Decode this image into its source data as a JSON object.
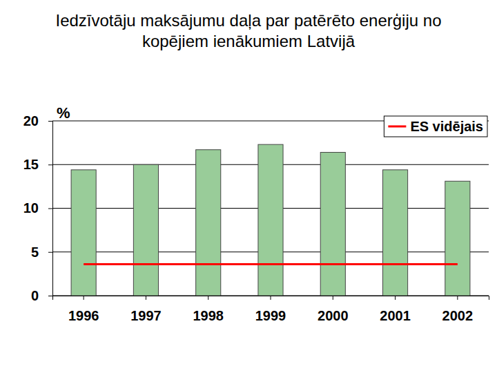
{
  "chart_data": {
    "type": "bar",
    "title": "Iedzīvotāju maksājumu daļa par patērēto enerģiju no kopējiem ienākumiem Latvijā",
    "y_label": "%",
    "categories": [
      "1996",
      "1997",
      "1998",
      "1999",
      "2000",
      "2001",
      "2002"
    ],
    "values": [
      14.4,
      15.0,
      16.7,
      17.3,
      16.4,
      14.4,
      13.1
    ],
    "color": "#99cc99",
    "series": [
      {
        "name": "ES vidējais",
        "type": "line",
        "color": "#ff0000",
        "values": [
          3.6,
          3.6,
          3.6,
          3.6,
          3.6,
          3.6,
          3.6
        ]
      }
    ],
    "ylim": [
      0,
      20
    ],
    "yticks": [
      0,
      5,
      10,
      15,
      20
    ],
    "grid": true,
    "legend": "top-right"
  }
}
